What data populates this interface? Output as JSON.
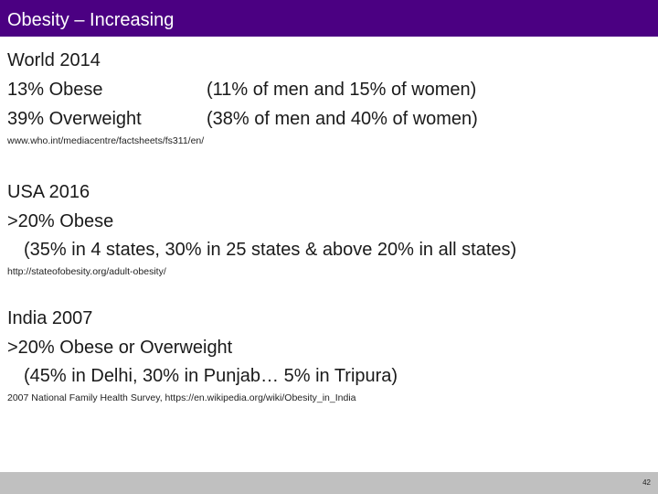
{
  "slide": {
    "title": "Obesity – Increasing",
    "page_number": "42",
    "colors": {
      "title_bar": "#4b0082",
      "title_text": "#ffffff",
      "footer_bar": "#c0c0c0",
      "body_text": "#1a1a1a"
    }
  },
  "world": {
    "heading": "World 2014",
    "obese_label": "13% Obese",
    "obese_detail": "(11% of men and 15% of women)",
    "overweight_label": "39% Overweight",
    "overweight_detail": "(38% of men and 40% of women)",
    "source": "www.who.int/mediacentre/factsheets/fs311/en/"
  },
  "usa": {
    "heading": "USA 2016",
    "stat": ">20% Obese",
    "detail": "(35% in 4 states, 30% in 25 states & above 20% in all states)",
    "source": "http://stateofobesity.org/adult-obesity/"
  },
  "india": {
    "heading": "India 2007",
    "stat": ">20% Obese or Overweight",
    "detail": "(45% in Delhi, 30% in Punjab… 5% in Tripura)",
    "source": "2007 National Family Health Survey, https://en.wikipedia.org/wiki/Obesity_in_India"
  }
}
